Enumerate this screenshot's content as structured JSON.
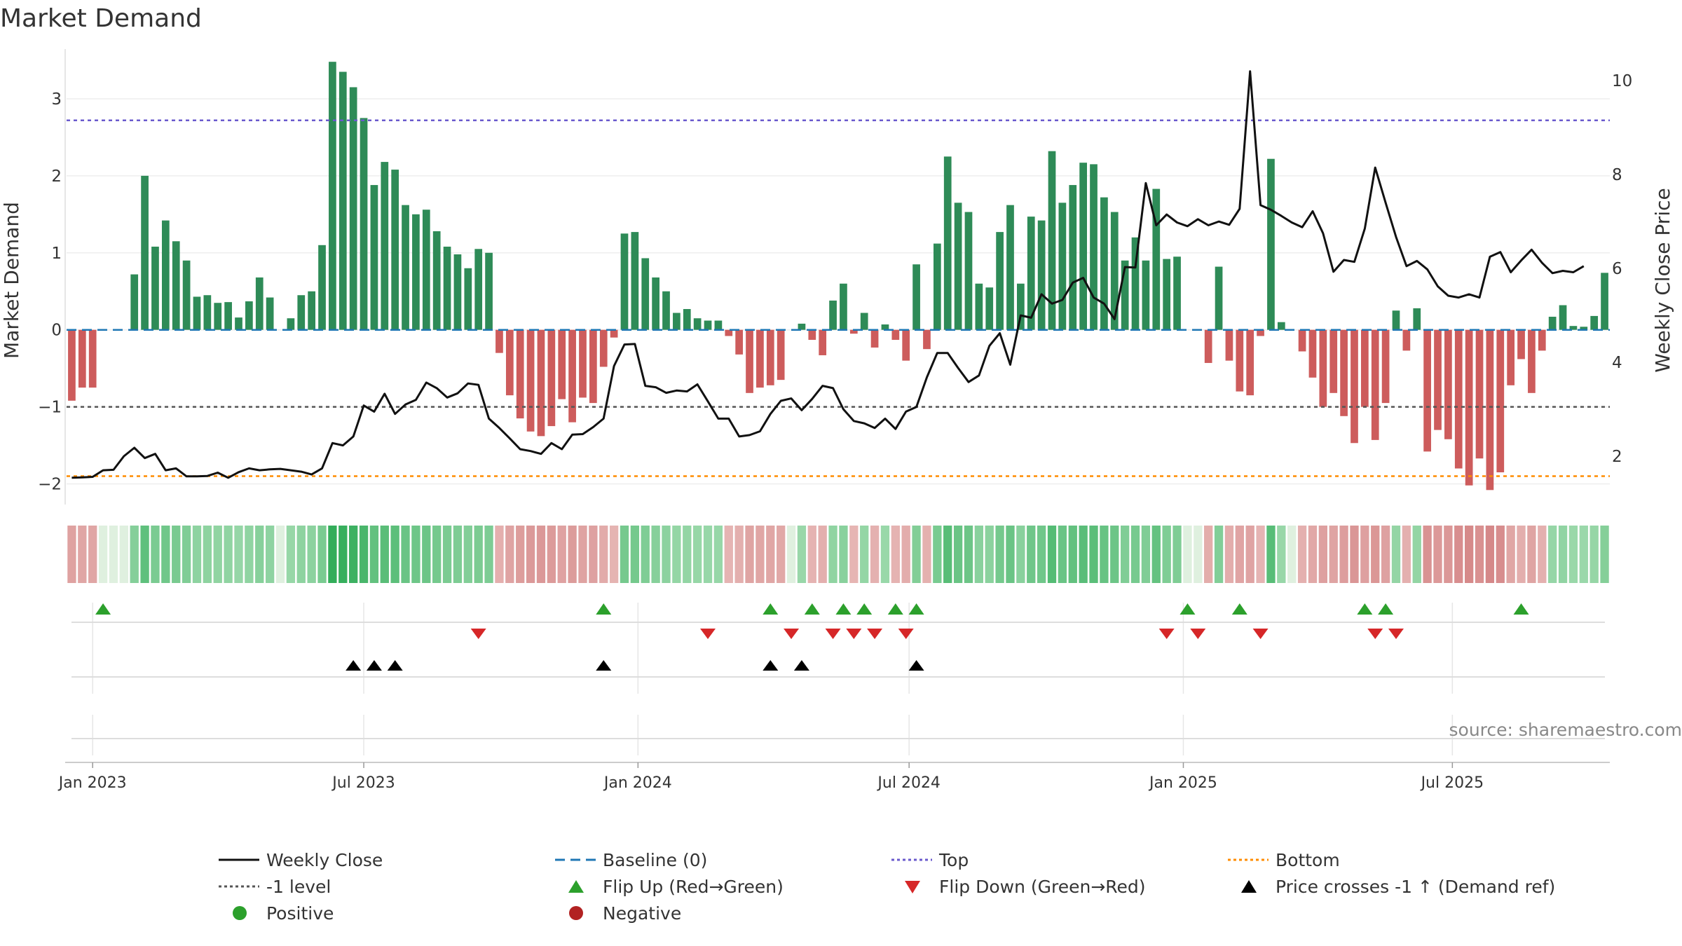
{
  "title": "Market Demand",
  "source_label": "source: sharemaestro.com",
  "colors": {
    "positive_bar": "#2e8b57",
    "negative_bar": "#cd5c5c",
    "price_line": "#111111",
    "baseline": "#1f77b4",
    "top_line": "#6a5acd",
    "bottom_line": "#ff8c00",
    "minus1_line": "#555555",
    "flip_up": "#2ca02c",
    "flip_down": "#d62728",
    "cross_marker": "#000000",
    "positive_dot": "#2ca02c",
    "negative_dot": "#b22222"
  },
  "chart_data": {
    "type": "bar",
    "title": "Market Demand",
    "ylabel": "Market Demand",
    "y2label": "Weekly Close Price",
    "ylim": [
      -2.25,
      3.6
    ],
    "y2lim": [
      1.0,
      10.6
    ],
    "yticks": [
      -2,
      -1,
      0,
      1,
      2,
      3
    ],
    "yticklabels": [
      "−2",
      "−1",
      "0",
      "1",
      "2",
      "3"
    ],
    "y2ticks": [
      2,
      4,
      6,
      8,
      10
    ],
    "y2ticklabels": [
      "2",
      "4",
      "6",
      "8",
      "10"
    ],
    "x_start": "2022-12-19",
    "x_end": "2025-09-15",
    "x_ticks": [
      {
        "label": "Jan 2023",
        "week": 2
      },
      {
        "label": "Jul 2023",
        "week": 28
      },
      {
        "label": "Jan 2024",
        "week": 54.3
      },
      {
        "label": "Jul 2024",
        "week": 80.3
      },
      {
        "label": "Jan 2025",
        "week": 106.6
      },
      {
        "label": "Jul 2025",
        "week": 132.4
      }
    ],
    "reference_lines": {
      "top": 2.72,
      "bottom": -1.9,
      "minus1": -1.0,
      "baseline": 0
    },
    "demand": [
      -0.92,
      -0.75,
      -0.75,
      0,
      0,
      0,
      0.72,
      2.0,
      1.08,
      1.42,
      1.15,
      0.9,
      0.43,
      0.45,
      0.35,
      0.36,
      0.16,
      0.37,
      0.68,
      0.42,
      0,
      0.15,
      0.45,
      0.5,
      1.1,
      3.48,
      3.35,
      3.15,
      2.75,
      1.88,
      2.18,
      2.08,
      1.62,
      1.5,
      1.56,
      1.28,
      1.08,
      0.98,
      0.8,
      1.05,
      1.0,
      -0.3,
      -0.85,
      -1.15,
      -1.32,
      -1.38,
      -1.25,
      -0.9,
      -1.2,
      -0.88,
      -0.95,
      -0.48,
      -0.1,
      1.25,
      1.27,
      0.93,
      0.68,
      0.5,
      0.22,
      0.27,
      0.15,
      0.12,
      0.12,
      -0.08,
      -0.32,
      -0.82,
      -0.75,
      -0.72,
      -0.65,
      0,
      0.08,
      -0.13,
      -0.33,
      0.38,
      0.6,
      -0.05,
      0.22,
      -0.23,
      0.07,
      -0.13,
      -0.4,
      0.85,
      -0.25,
      1.12,
      2.25,
      1.65,
      1.53,
      0.6,
      0.55,
      1.27,
      1.62,
      0.6,
      1.47,
      1.42,
      2.32,
      1.65,
      1.88,
      2.17,
      2.15,
      1.72,
      1.53,
      0.9,
      1.2,
      0.9,
      1.83,
      0.92,
      0.95,
      0,
      0,
      -0.43,
      0.82,
      -0.4,
      -0.8,
      -0.85,
      -0.08,
      2.22,
      0.1,
      0,
      -0.28,
      -0.62,
      -1.0,
      -0.82,
      -1.12,
      -1.47,
      -1.0,
      -1.43,
      -0.95,
      0.25,
      -0.27,
      0.28,
      -1.58,
      -1.3,
      -1.42,
      -1.8,
      -2.02,
      -1.67,
      -2.08,
      -1.85,
      -0.72,
      -0.38,
      -0.82,
      -0.27,
      0.17,
      0.32,
      0.05,
      0.04,
      0.18,
      0.74
    ],
    "price": [
      1.54,
      1.55,
      1.56,
      1.7,
      1.71,
      2.0,
      2.18,
      1.96,
      2.05,
      1.7,
      1.74,
      1.57,
      1.57,
      1.58,
      1.65,
      1.54,
      1.66,
      1.74,
      1.7,
      1.72,
      1.73,
      1.7,
      1.67,
      1.61,
      1.74,
      2.28,
      2.23,
      2.42,
      3.08,
      2.95,
      3.33,
      2.9,
      3.1,
      3.2,
      3.57,
      3.45,
      3.25,
      3.34,
      3.55,
      3.52,
      2.8,
      2.6,
      2.38,
      2.15,
      2.11,
      2.05,
      2.28,
      2.15,
      2.46,
      2.47,
      2.62,
      2.8,
      3.92,
      4.38,
      4.39,
      3.5,
      3.47,
      3.35,
      3.4,
      3.38,
      3.53,
      3.17,
      2.8,
      2.8,
      2.42,
      2.45,
      2.53,
      2.9,
      3.18,
      3.23,
      2.98,
      3.22,
      3.5,
      3.45,
      3.0,
      2.75,
      2.7,
      2.6,
      2.8,
      2.58,
      2.95,
      3.05,
      3.68,
      4.2,
      4.2,
      3.88,
      3.58,
      3.72,
      4.35,
      4.62,
      3.95,
      5.0,
      4.95,
      5.45,
      5.25,
      5.33,
      5.7,
      5.8,
      5.38,
      5.25,
      4.92,
      6.03,
      6.02,
      7.82,
      6.92,
      7.15,
      6.98,
      6.9,
      7.05,
      6.92,
      7.0,
      6.93,
      7.27,
      10.2,
      7.35,
      7.25,
      7.12,
      6.98,
      6.88,
      7.22,
      6.75,
      5.93,
      6.18,
      6.14,
      6.85,
      8.15,
      7.4,
      6.67,
      6.05,
      6.16,
      5.98,
      5.62,
      5.42,
      5.38,
      5.45,
      5.38,
      6.25,
      6.35,
      5.92,
      6.17,
      6.4,
      6.12,
      5.9,
      5.95,
      5.92,
      6.05
    ],
    "heat_strip": "Market Demand intensity per week (green positive, red negative)",
    "flip_up_weeks": [
      3,
      51,
      67,
      71,
      74,
      76,
      79,
      81,
      107,
      112,
      124,
      126,
      139
    ],
    "flip_down_weeks": [
      39,
      61,
      69,
      73,
      75,
      77,
      80,
      105,
      108,
      114,
      125,
      127
    ],
    "price_cross_weeks": [
      27,
      29,
      31,
      51,
      67,
      70,
      81
    ]
  },
  "legend": [
    {
      "label": "Weekly Close",
      "symbol": "solid-line"
    },
    {
      "label": "Baseline (0)",
      "symbol": "dashed-line"
    },
    {
      "label": "Top",
      "symbol": "dotted-line"
    },
    {
      "label": "Bottom",
      "symbol": "dotted-line"
    },
    {
      "label": "-1 level",
      "symbol": "dotted-line"
    },
    {
      "label": "Flip Up (Red→Green)",
      "symbol": "triangle-up"
    },
    {
      "label": "Flip Down (Green→Red)",
      "symbol": "triangle-down"
    },
    {
      "label": "Price crosses -1 ↑ (Demand ref)",
      "symbol": "triangle-up"
    },
    {
      "label": "Positive",
      "symbol": "dot"
    },
    {
      "label": "Negative",
      "symbol": "dot"
    }
  ]
}
